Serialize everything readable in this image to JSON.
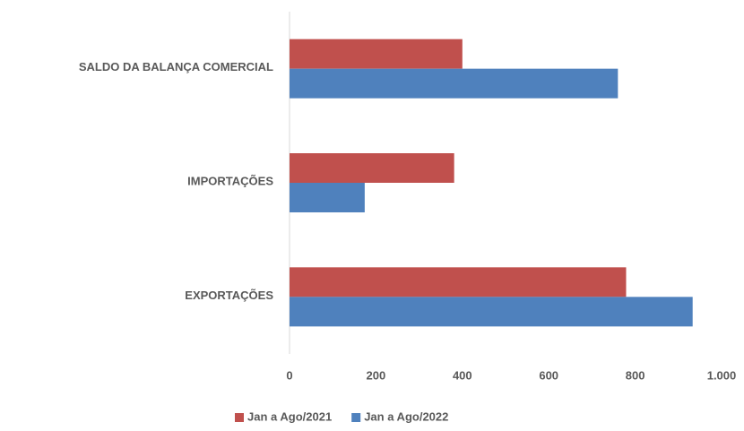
{
  "chart_data": {
    "type": "hbar",
    "categories": [
      "SALDO DA BALANÇA COMERCIAL",
      "IMPORTAÇÕES",
      "EXPORTAÇÕES"
    ],
    "series": [
      {
        "name": "Jan a Ago/2021",
        "color": "#c0504d",
        "values": [
          400,
          381,
          779
        ]
      },
      {
        "name": "Jan a Ago/2022",
        "color": "#4f81bd",
        "values": [
          760,
          174,
          933
        ]
      }
    ],
    "xlim": [
      0,
      1000
    ],
    "xticks": [
      0,
      200,
      400,
      600,
      800,
      {
        "value": 1000,
        "label": "1.000"
      }
    ],
    "legend": "bottom"
  }
}
